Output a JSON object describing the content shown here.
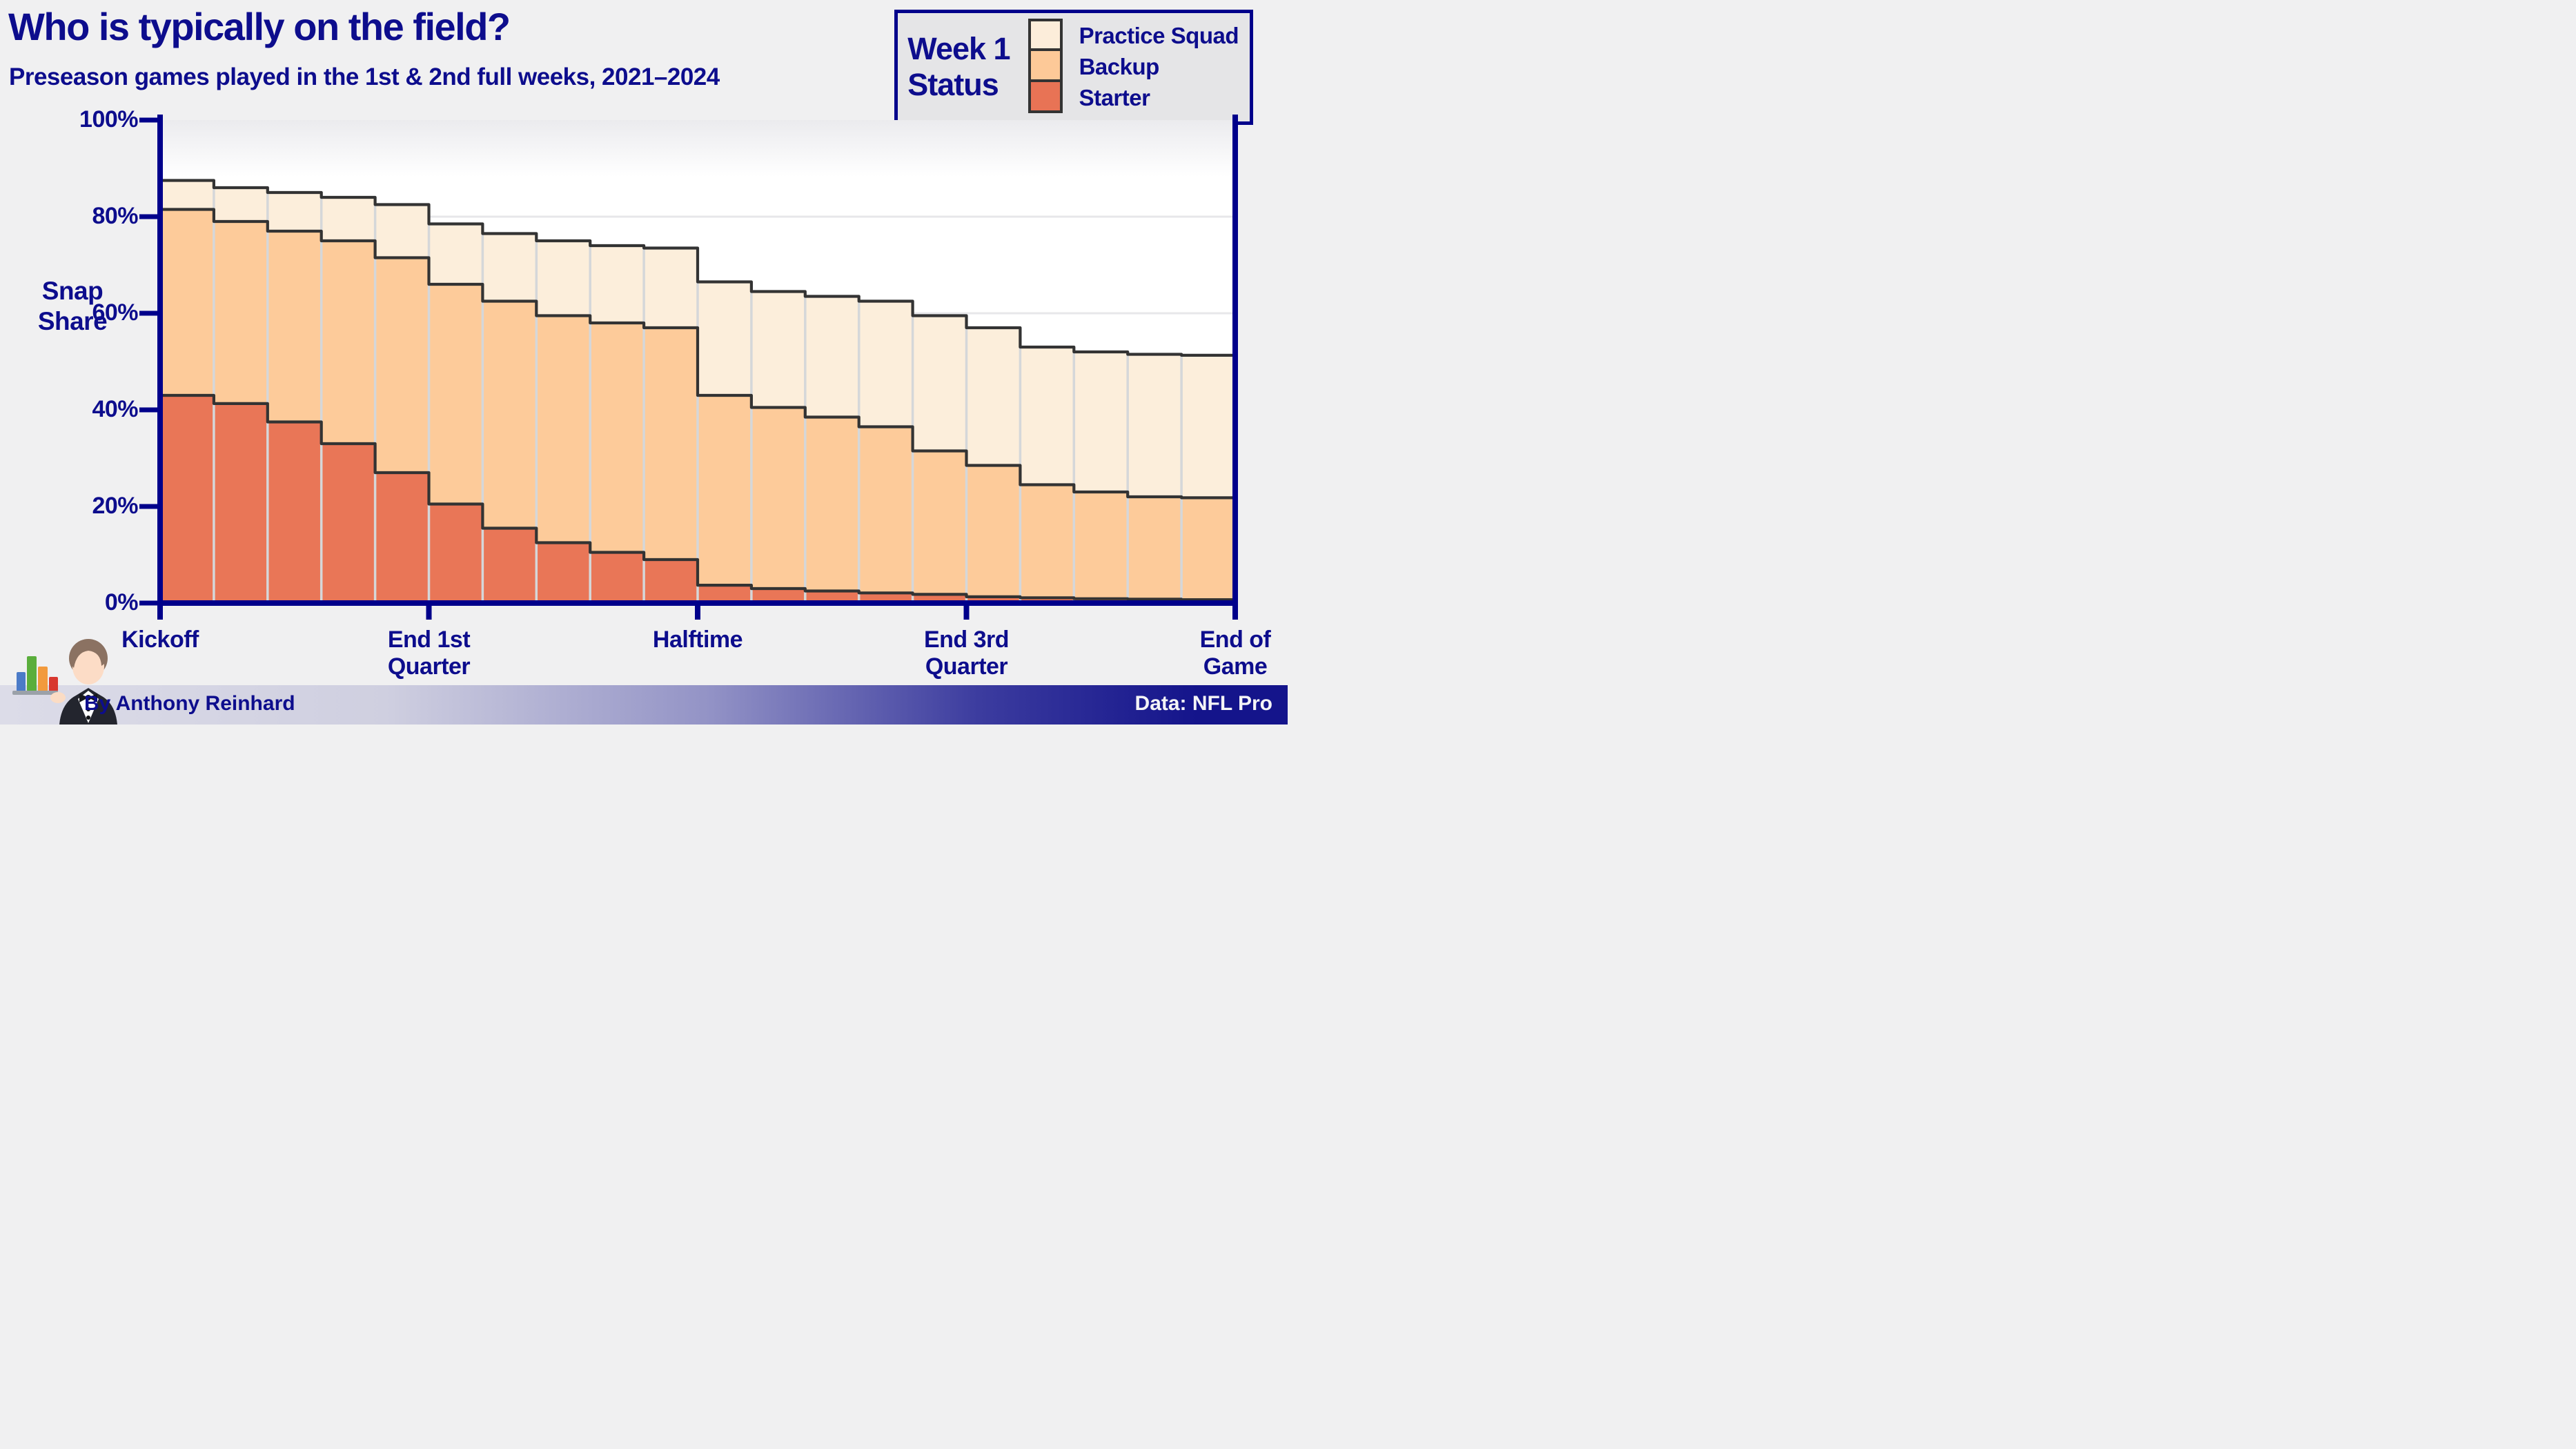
{
  "page": {
    "background": "#f0f0f1",
    "text_navy": "#0d0d8d",
    "axis_color": "#00008b"
  },
  "header": {
    "title": "Who is typically on the field?",
    "subtitle": "Preseason games played in the 1st & 2nd full weeks, 2021–2024"
  },
  "legend": {
    "title_lines": [
      "Week 1",
      "Status"
    ],
    "items": [
      {
        "label": "Practice Squad",
        "color": "#fcedda"
      },
      {
        "label": "Backup",
        "color": "#fdc998"
      },
      {
        "label": "Starter",
        "color": "#e87355"
      }
    ]
  },
  "y_axis": {
    "label_lines": [
      "Snap",
      "Share"
    ],
    "ticks": [
      {
        "label": "0%",
        "value": 0
      },
      {
        "label": "20%",
        "value": 20
      },
      {
        "label": "40%",
        "value": 40
      },
      {
        "label": "60%",
        "value": 60
      },
      {
        "label": "80%",
        "value": 80
      },
      {
        "label": "100%",
        "value": 100
      }
    ]
  },
  "x_axis": {
    "ticks": [
      {
        "label_lines": [
          "Kickoff"
        ],
        "pos": 0
      },
      {
        "label_lines": [
          "End 1st",
          "Quarter"
        ],
        "pos": 0.25
      },
      {
        "label_lines": [
          "Halftime"
        ],
        "pos": 0.5
      },
      {
        "label_lines": [
          "End 3rd",
          "Quarter"
        ],
        "pos": 0.75
      },
      {
        "label_lines": [
          "End of",
          "Game"
        ],
        "pos": 1
      }
    ]
  },
  "footer": {
    "author": "By Anthony Reinhard",
    "source": "Data: NFL Pro"
  },
  "chart_data": {
    "type": "area",
    "stacked": true,
    "step_interpolation": true,
    "title": "Who is typically on the field?",
    "subtitle": "Preseason games played in the 1st & 2nd full weeks, 2021–2024",
    "ylabel": "Snap Share",
    "ylim": [
      0,
      100
    ],
    "x_description": "Game time split into 20 equal segments from Kickoff to End of Game; labels at Kickoff, End 1st Quarter, Halftime, End 3rd Quarter, End of Game",
    "series": [
      {
        "name": "Starter",
        "color": "#e87355",
        "values": [
          43,
          41.3,
          37.5,
          33,
          27,
          20.5,
          15.5,
          12.5,
          10.5,
          9,
          3.7,
          3,
          2.5,
          2.1,
          1.8,
          1.3,
          1.1,
          0.9,
          0.8,
          0.7
        ]
      },
      {
        "name": "Backup",
        "color": "#fdc998",
        "values": [
          38.5,
          37.7,
          39.5,
          42,
          44.5,
          45.5,
          47,
          47,
          47.5,
          48,
          39.3,
          37.5,
          36,
          34.4,
          29.7,
          27.2,
          23.4,
          22.1,
          21.2,
          21.1
        ]
      },
      {
        "name": "Practice Squad",
        "color": "#fcedda",
        "values": [
          6,
          7,
          8,
          9,
          11,
          12.5,
          14,
          15.5,
          16,
          16.5,
          23.5,
          24,
          25,
          26,
          28,
          28.5,
          28.5,
          29,
          29.5,
          29.5
        ]
      }
    ],
    "cumulative_tops": {
      "starter": [
        43,
        41.3,
        37.5,
        33,
        27,
        20.5,
        15.5,
        12.5,
        10.5,
        9,
        3.7,
        3,
        2.5,
        2.1,
        1.8,
        1.3,
        1.1,
        0.9,
        0.8,
        0.7
      ],
      "backup": [
        81.5,
        79,
        77,
        75,
        71.5,
        66,
        62.5,
        59.5,
        58,
        57,
        43,
        40.5,
        38.5,
        36.5,
        31.5,
        28.5,
        24.5,
        23,
        22,
        21.8
      ],
      "total": [
        87.5,
        86.3,
        85,
        84,
        82.5,
        78.5,
        76.5,
        75,
        74,
        73.5,
        66.5,
        64.5,
        63.5,
        62.5,
        59.5,
        57,
        53,
        52,
        51.5,
        51.3
      ]
    },
    "outline_color": "#333333",
    "divider_color": "#d5d7d9",
    "grid_color": "#e7e7ea",
    "legend_position": "top-right",
    "grid": true
  }
}
